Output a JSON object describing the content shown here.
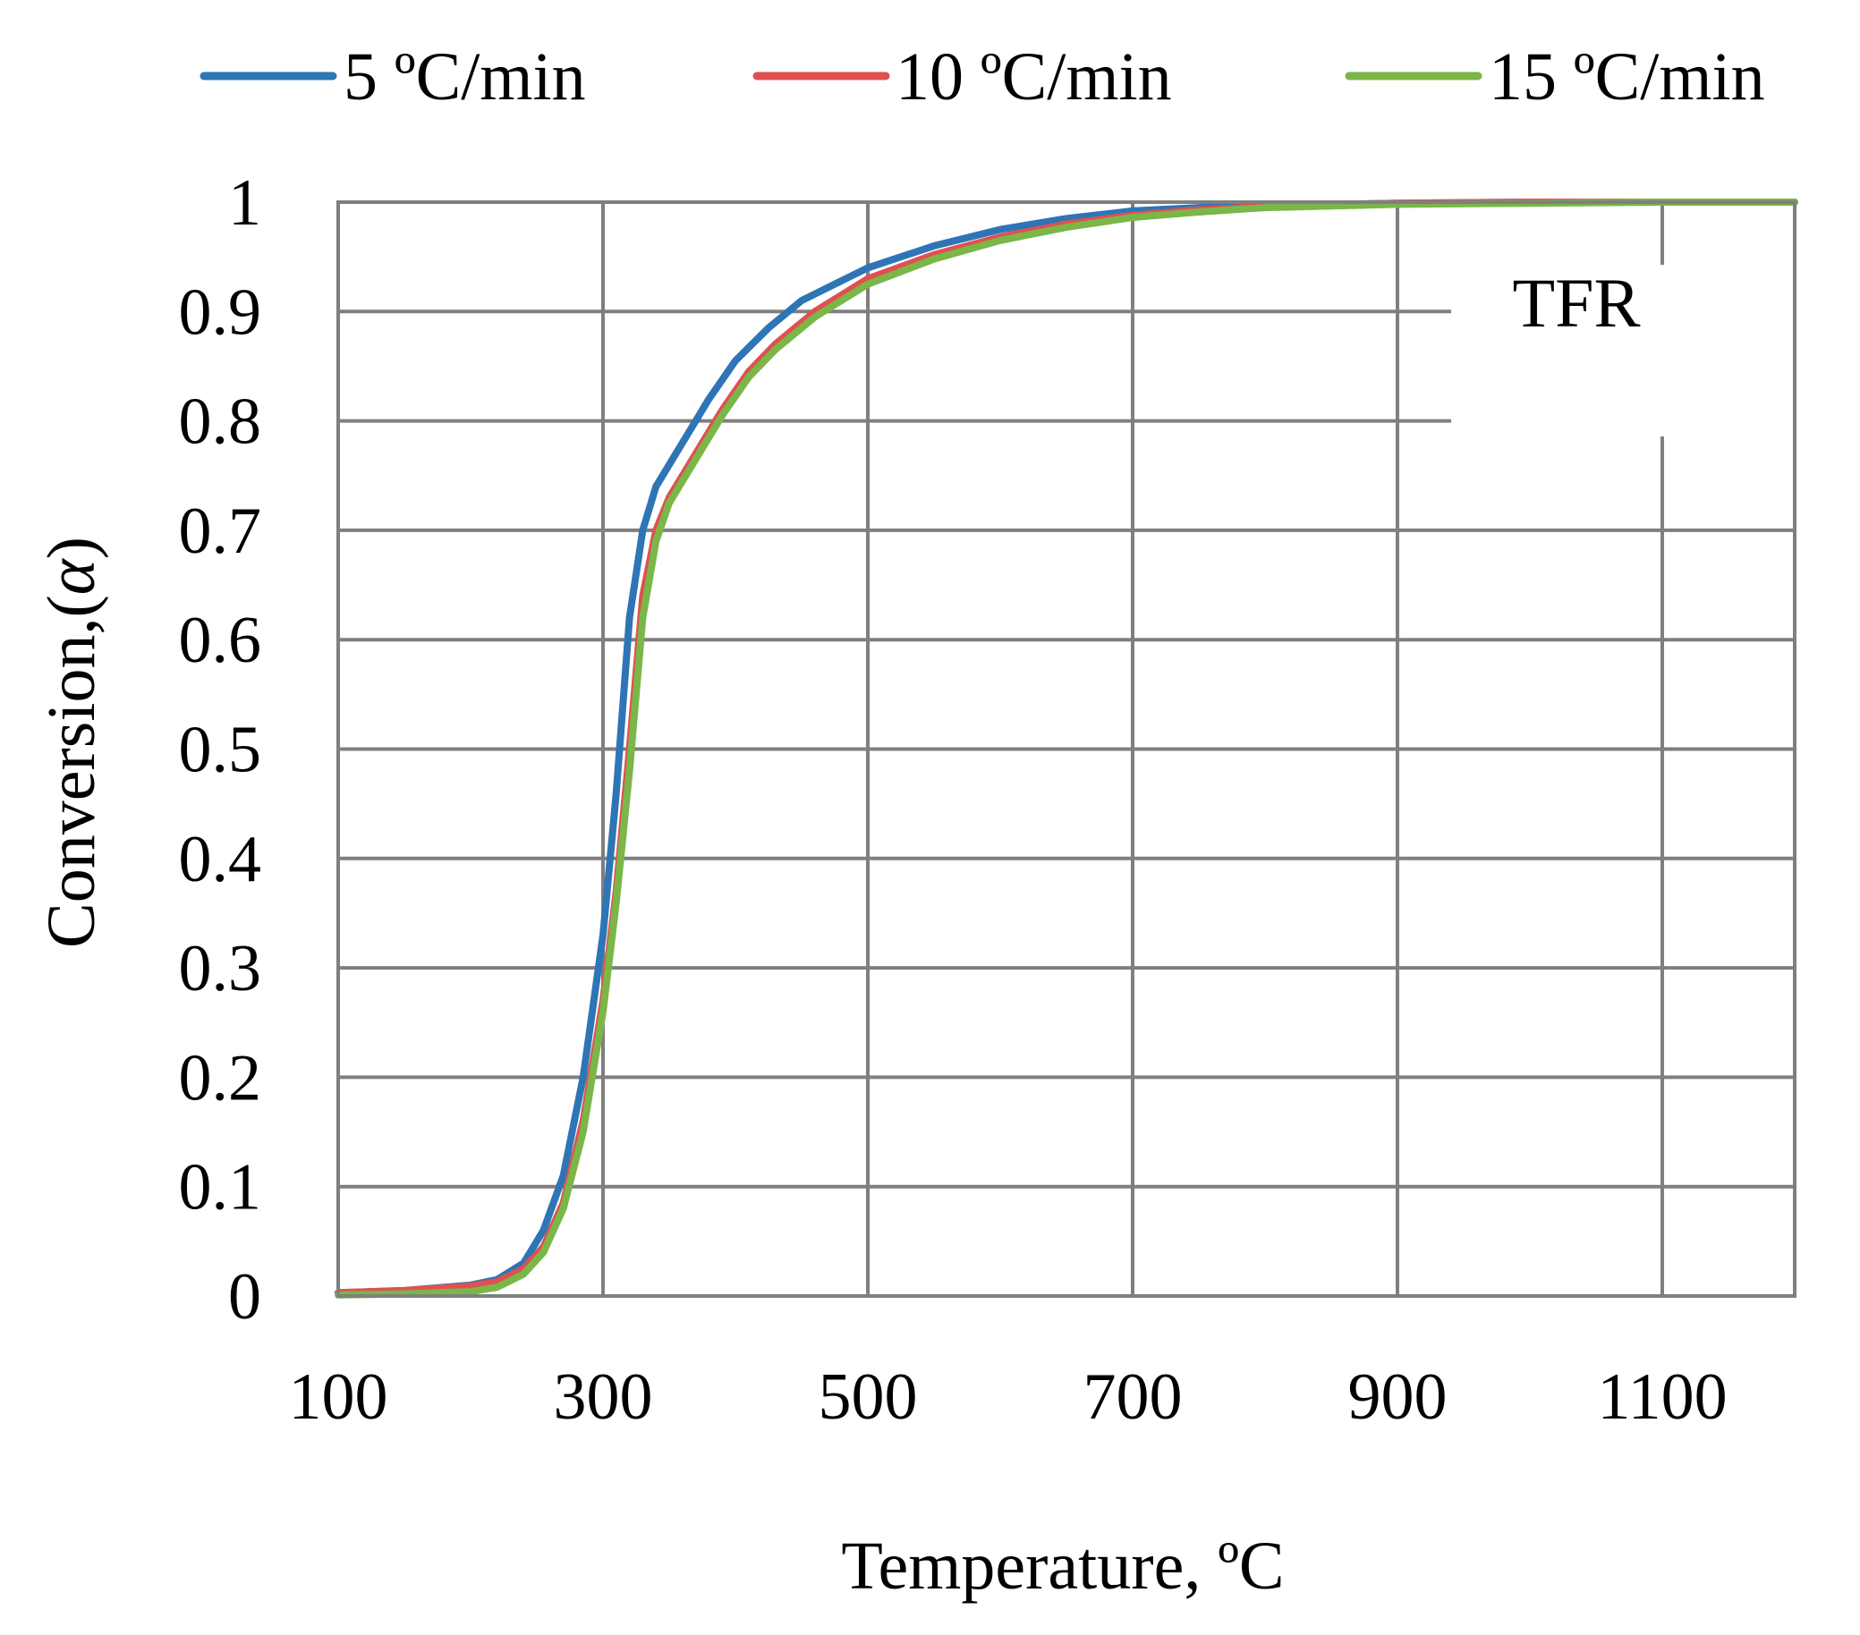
{
  "chart_data": {
    "type": "line",
    "title": "",
    "xlabel": "Temperature, ºC",
    "ylabel_main": "Conversion,(",
    "ylabel_symbol": "α",
    "ylabel_end": ")",
    "xlim": [
      100,
      1200
    ],
    "ylim": [
      0,
      1
    ],
    "xticks": [
      100,
      300,
      500,
      700,
      900,
      1100
    ],
    "xtick_labels": [
      "100",
      "300",
      "500",
      "700",
      "900",
      "1100"
    ],
    "yticks": [
      0,
      0.1,
      0.2,
      0.3,
      0.4,
      0.5,
      0.6,
      0.7,
      0.8,
      0.9,
      1
    ],
    "ytick_labels": [
      "0",
      "0.1",
      "0.2",
      "0.3",
      "0.4",
      "0.5",
      "0.6",
      "0.7",
      "0.8",
      "0.9",
      "1"
    ],
    "grid": true,
    "legend_position": "top",
    "annotation": "TFR",
    "series": [
      {
        "name": "5 ºC/min",
        "color": "#2e75b6",
        "x": [
          100,
          150,
          200,
          220,
          240,
          255,
          270,
          285,
          300,
          310,
          320,
          330,
          340,
          360,
          380,
          400,
          425,
          450,
          475,
          500,
          550,
          600,
          650,
          700,
          750,
          800,
          900,
          1000,
          1100,
          1200
        ],
        "y": [
          0.003,
          0.005,
          0.01,
          0.015,
          0.03,
          0.06,
          0.11,
          0.2,
          0.33,
          0.46,
          0.62,
          0.7,
          0.74,
          0.78,
          0.82,
          0.855,
          0.885,
          0.91,
          0.925,
          0.94,
          0.96,
          0.975,
          0.985,
          0.992,
          0.995,
          0.997,
          0.999,
          1.0,
          1.0,
          1.0
        ]
      },
      {
        "name": "10 ºC/min",
        "color": "#e05050",
        "x": [
          100,
          150,
          200,
          220,
          240,
          255,
          270,
          285,
          300,
          310,
          320,
          330,
          340,
          350,
          370,
          390,
          410,
          430,
          460,
          500,
          550,
          600,
          650,
          700,
          750,
          800,
          900,
          1000,
          1100,
          1200
        ],
        "y": [
          0.003,
          0.005,
          0.009,
          0.013,
          0.025,
          0.045,
          0.085,
          0.16,
          0.27,
          0.37,
          0.5,
          0.64,
          0.7,
          0.73,
          0.77,
          0.81,
          0.845,
          0.87,
          0.9,
          0.93,
          0.952,
          0.968,
          0.98,
          0.988,
          0.993,
          0.996,
          0.999,
          1.0,
          1.0,
          1.0
        ]
      },
      {
        "name": "15 ºC/min",
        "color": "#7ab648",
        "x": [
          100,
          150,
          200,
          220,
          240,
          255,
          270,
          285,
          300,
          310,
          320,
          330,
          340,
          350,
          370,
          390,
          410,
          430,
          460,
          500,
          550,
          600,
          650,
          700,
          750,
          800,
          900,
          1000,
          1100,
          1200
        ],
        "y": [
          0.001,
          0.002,
          0.004,
          0.008,
          0.02,
          0.04,
          0.08,
          0.15,
          0.26,
          0.36,
          0.48,
          0.62,
          0.69,
          0.725,
          0.765,
          0.805,
          0.84,
          0.865,
          0.895,
          0.925,
          0.948,
          0.965,
          0.977,
          0.986,
          0.991,
          0.995,
          0.998,
          0.999,
          1.0,
          1.0
        ]
      }
    ]
  }
}
